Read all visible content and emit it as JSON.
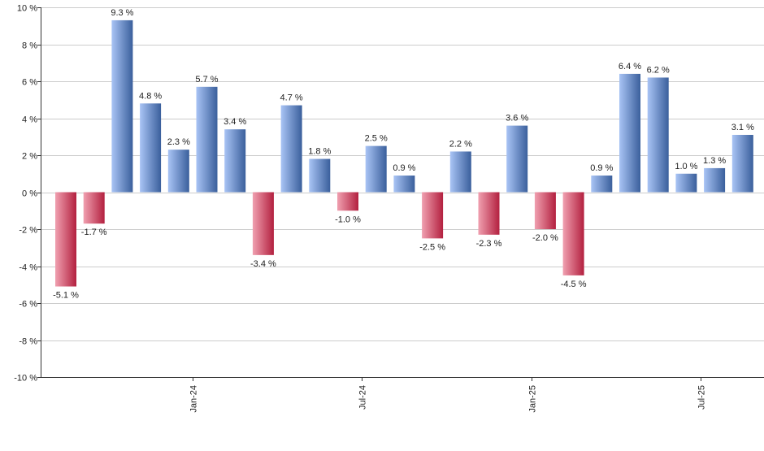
{
  "chart_data": {
    "type": "bar",
    "title": "",
    "xlabel": "",
    "ylabel": "",
    "ylim": [
      -10,
      10
    ],
    "y_ticks": [
      10,
      8,
      6,
      4,
      2,
      0,
      -2,
      -4,
      -6,
      -8,
      -10
    ],
    "y_tick_labels": [
      "10 %",
      "8 %",
      "6 %",
      "4 %",
      "2 %",
      "0 %",
      "-2 %",
      "-4 %",
      "-6 %",
      "-8 %",
      "-10 %"
    ],
    "x_tick_labels": [
      {
        "label": "Jan-24",
        "index": 4.5
      },
      {
        "label": "Jul-24",
        "index": 10.5
      },
      {
        "label": "Jan-25",
        "index": 16.5
      },
      {
        "label": "Jul-25",
        "index": 22.5
      }
    ],
    "values": [
      -5.1,
      -1.7,
      9.3,
      4.8,
      2.3,
      5.7,
      3.4,
      -3.4,
      4.7,
      1.8,
      -1.0,
      2.5,
      0.9,
      -2.5,
      2.2,
      -2.3,
      3.6,
      -2.0,
      -4.5,
      0.9,
      6.4,
      6.2,
      1.0,
      1.3,
      3.1
    ],
    "value_labels": [
      "-5.1 %",
      "-1.7 %",
      "9.3 %",
      "4.8 %",
      "2.3 %",
      "5.7 %",
      "3.4 %",
      "-3.4 %",
      "4.7 %",
      "1.8 %",
      "-1.0 %",
      "2.5 %",
      "0.9 %",
      "-2.5 %",
      "2.2 %",
      "-2.3 %",
      "3.6 %",
      "-2.0 %",
      "-4.5 %",
      "0.9 %",
      "6.4 %",
      "6.2 %",
      "1.0 %",
      "1.3 %",
      "3.1 %"
    ],
    "grid": true,
    "legend": "none",
    "colors": {
      "positive_light": "#a9c4f5",
      "positive_dark": "#3a5f9c",
      "negative_light": "#f0a0b0",
      "negative_dark": "#b3203f",
      "grid": "#cccccc",
      "axis": "#333333"
    }
  }
}
